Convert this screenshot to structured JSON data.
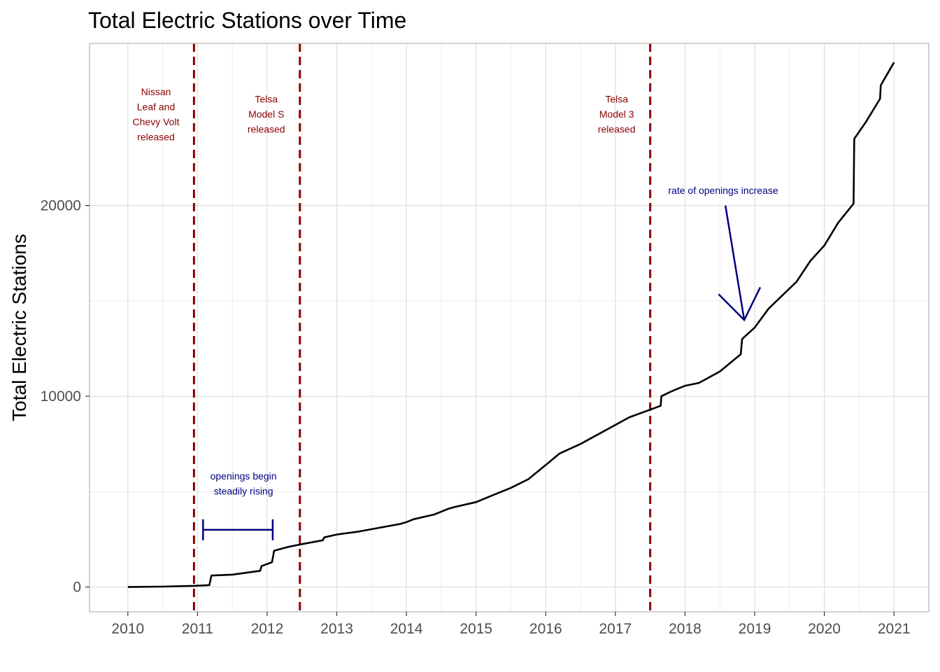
{
  "chart_data": {
    "type": "line",
    "title": "Total Electric Stations over Time",
    "xlabel": "",
    "ylabel": "Total Electric Stations",
    "xlim": [
      2009.45,
      2021.5
    ],
    "ylim": [
      -1300,
      28500
    ],
    "x_ticks": [
      2010,
      2011,
      2012,
      2013,
      2014,
      2015,
      2016,
      2017,
      2018,
      2019,
      2020,
      2021
    ],
    "x_tick_labels": [
      "2010",
      "2011",
      "2012",
      "2013",
      "2014",
      "2015",
      "2016",
      "2017",
      "2018",
      "2019",
      "2020",
      "2021"
    ],
    "y_ticks": [
      0,
      10000,
      20000
    ],
    "y_tick_labels": [
      "0",
      "10000",
      "20000"
    ],
    "grid": true,
    "series": [
      {
        "values_x": [
          2010.0,
          2010.5,
          2010.95,
          2011.17,
          2011.2,
          2011.5,
          2011.9,
          2011.92,
          2012.07,
          2012.1,
          2012.3,
          2012.5,
          2012.8,
          2012.82,
          2013.0,
          2013.3,
          2013.6,
          2013.9,
          2014.0,
          2014.1,
          2014.4,
          2014.6,
          2014.7,
          2015.0,
          2015.2,
          2015.5,
          2015.75,
          2016.0,
          2016.2,
          2016.5,
          2016.7,
          2017.0,
          2017.2,
          2017.5,
          2017.65,
          2017.66,
          2017.8,
          2018.0,
          2018.2,
          2018.5,
          2018.8,
          2018.82,
          2019.0,
          2019.2,
          2019.4,
          2019.6,
          2019.8,
          2020.0,
          2020.2,
          2020.42,
          2020.43,
          2020.6,
          2020.8,
          2020.81,
          2021.0
        ],
        "values_y": [
          0,
          20,
          60,
          100,
          600,
          650,
          850,
          1100,
          1300,
          1900,
          2100,
          2250,
          2450,
          2600,
          2750,
          2900,
          3100,
          3300,
          3400,
          3550,
          3800,
          4100,
          4200,
          4450,
          4750,
          5200,
          5650,
          6400,
          7000,
          7500,
          7900,
          8500,
          8900,
          9300,
          9500,
          10000,
          10250,
          10550,
          10700,
          11300,
          12200,
          13000,
          13600,
          14600,
          15300,
          16000,
          17100,
          17900,
          19100,
          20100,
          23500,
          24400,
          25600,
          26300,
          27500
        ]
      }
    ],
    "vlines": [
      {
        "x": 2010.95,
        "color": "#8b0000",
        "label": [
          "Nissan",
          "Leaf and",
          "Chevy Volt",
          "released"
        ]
      },
      {
        "x": 2012.47,
        "color": "#8b0000",
        "label": [
          "Telsa",
          "Model S",
          "released"
        ]
      },
      {
        "x": 2017.5,
        "color": "#8b0000",
        "label": [
          "Telsa",
          "Model 3",
          "released"
        ]
      }
    ],
    "annotations": [
      {
        "kind": "errorbar",
        "x_start": 2011.08,
        "x_end": 2012.08,
        "y": 3000,
        "color": "#000080",
        "label": [
          "openings begin",
          "steadily rising"
        ]
      },
      {
        "kind": "arrow",
        "x_from": 2018.58,
        "y_from": 20000,
        "x_to": 2018.85,
        "y_to": 14000,
        "color": "#000080",
        "label": [
          "rate of openings increase"
        ]
      }
    ],
    "colors": {
      "line": "#000000",
      "vline": "#8b0000",
      "annotation": "#000080",
      "grid": "#dedede",
      "panel_border": "#b3b3b3"
    }
  }
}
